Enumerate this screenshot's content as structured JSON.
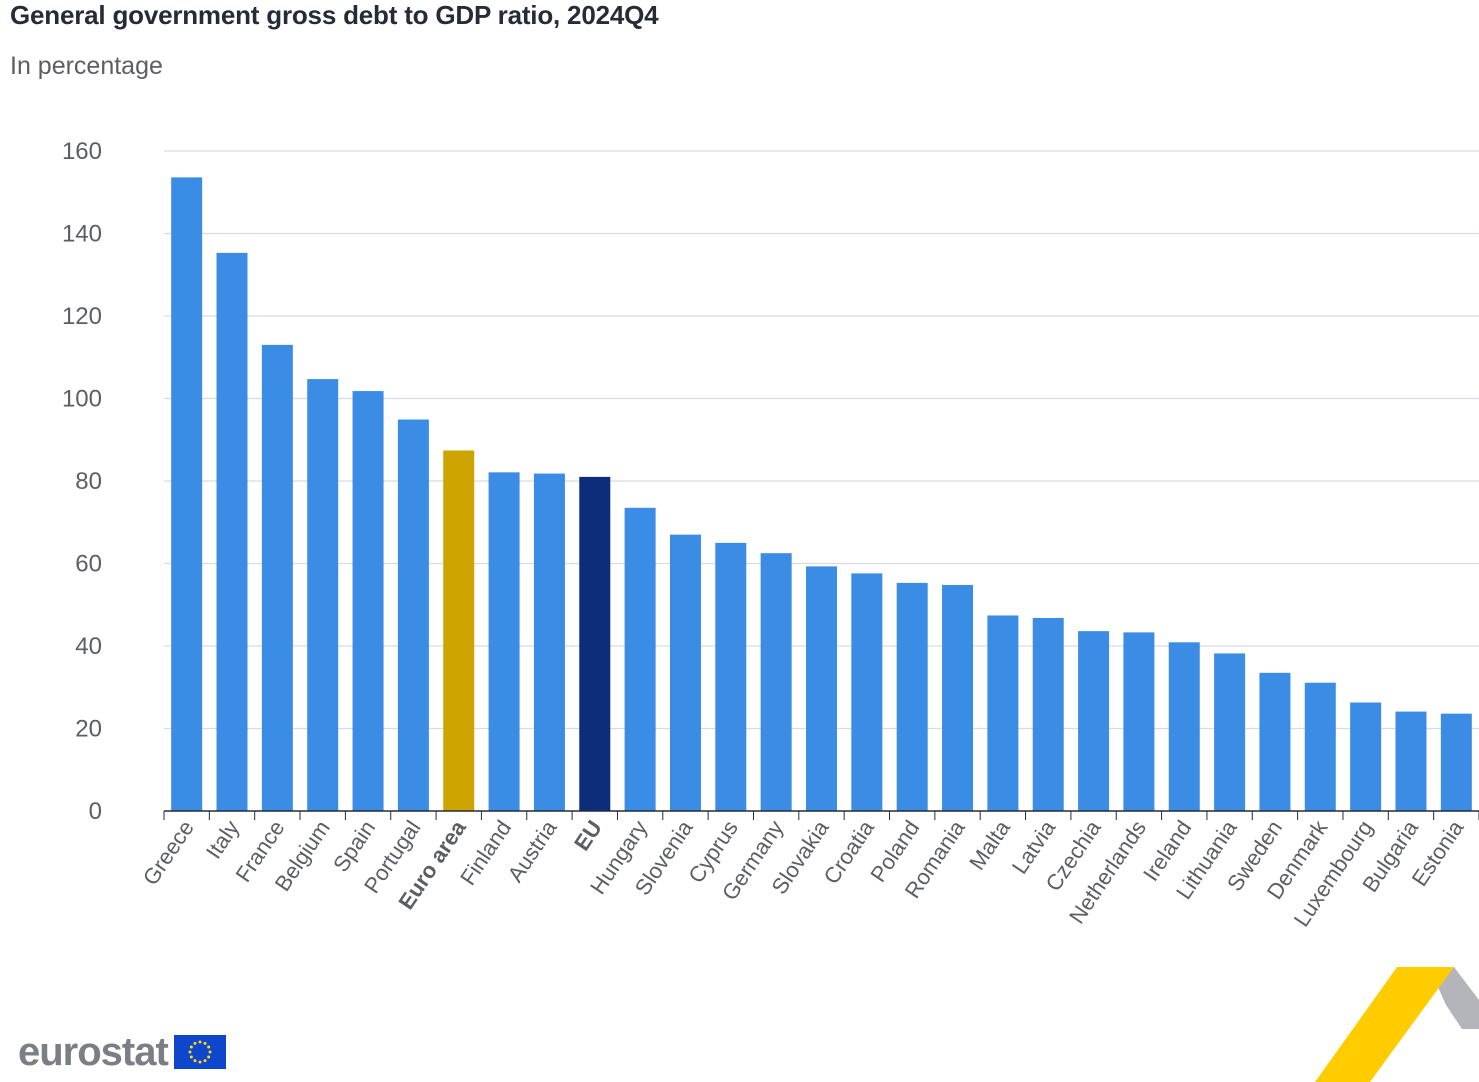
{
  "header": {
    "title": "General government gross debt to GDP ratio, 2024Q4",
    "subtitle": "In percentage"
  },
  "logo": {
    "text": "eurostat",
    "flag_icon": "eu-flag-icon"
  },
  "colors": {
    "bar": "#3b8ce4",
    "euro_area": "#cda400",
    "eu": "#0b2d7a",
    "grid": "#d9dbe1",
    "axis": "#262b38"
  },
  "chart_data": {
    "type": "bar",
    "title": "General government gross debt to GDP ratio, 2024Q4",
    "subtitle": "In percentage",
    "ylim": [
      0,
      160
    ],
    "yticks": [
      0,
      20,
      40,
      60,
      80,
      100,
      120,
      140,
      160
    ],
    "grid": true,
    "categories": [
      "Greece",
      "Italy",
      "France",
      "Belgium",
      "Spain",
      "Portugal",
      "Euro area",
      "Finland",
      "Austria",
      "EU",
      "Hungary",
      "Slovenia",
      "Cyprus",
      "Germany",
      "Slovakia",
      "Croatia",
      "Poland",
      "Romania",
      "Malta",
      "Latvia",
      "Czechia",
      "Netherlands",
      "Ireland",
      "Lithuania",
      "Sweden",
      "Denmark",
      "Luxembourg",
      "Bulgaria",
      "Estonia"
    ],
    "values": [
      153.6,
      135.3,
      113.0,
      104.7,
      101.8,
      94.9,
      87.4,
      82.1,
      81.8,
      81.0,
      73.5,
      67.0,
      65.0,
      62.5,
      59.3,
      57.6,
      55.3,
      54.8,
      47.4,
      46.8,
      43.6,
      43.3,
      40.9,
      38.2,
      33.5,
      31.1,
      26.3,
      24.1,
      23.6
    ],
    "highlight": {
      "Euro area": "euro_area",
      "EU": "eu"
    },
    "bold_labels": [
      "Euro area",
      "EU"
    ]
  }
}
